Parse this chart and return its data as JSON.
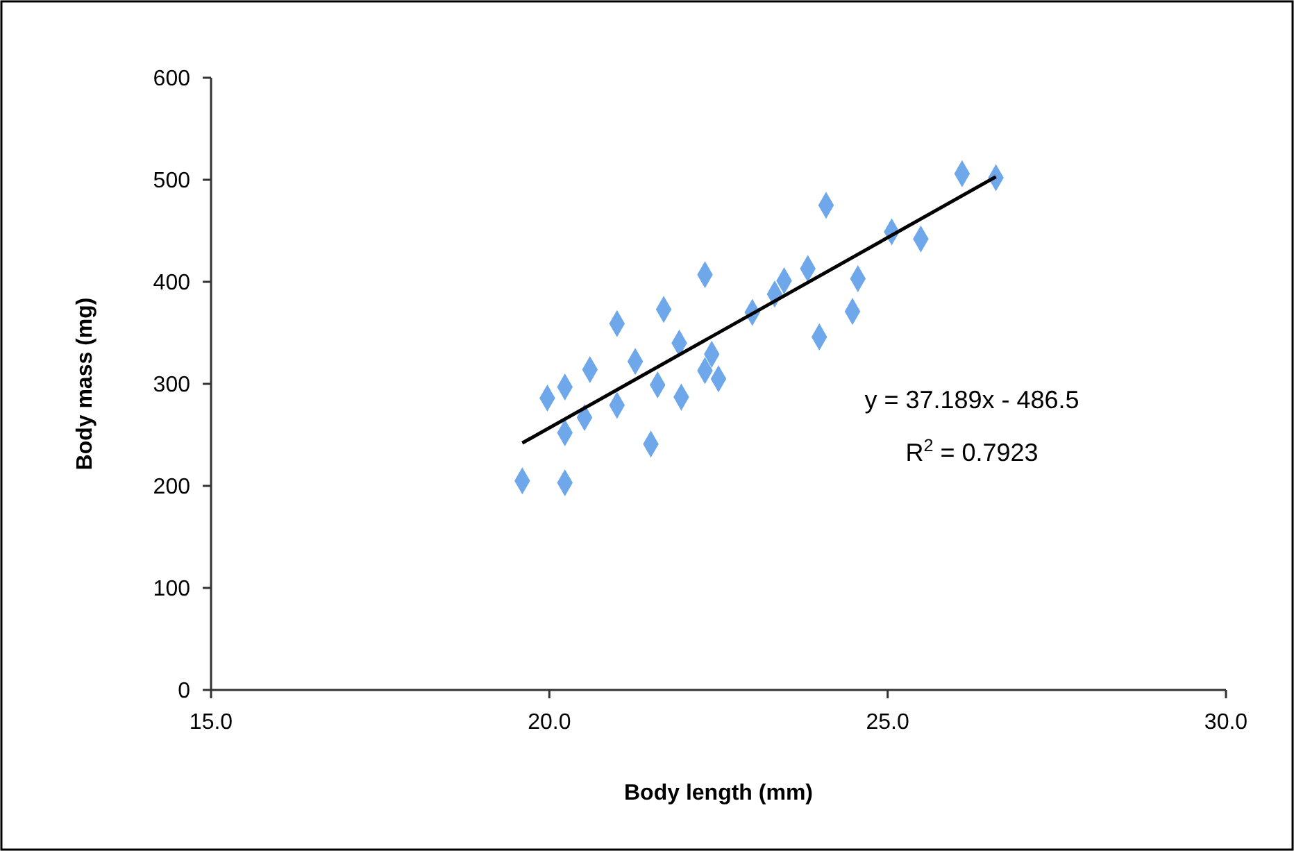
{
  "chart_data": {
    "type": "scatter",
    "xlabel": "Body length (mm)",
    "ylabel": "Body mass (mg)",
    "xlim": [
      15,
      30
    ],
    "xticks": [
      {
        "value": 15,
        "label": "15.0"
      },
      {
        "value": 20,
        "label": "20.0"
      },
      {
        "value": 25,
        "label": "25.0"
      },
      {
        "value": 30,
        "label": "30.0"
      }
    ],
    "ylim": [
      0,
      600
    ],
    "yticks": [
      0,
      100,
      200,
      300,
      400,
      500,
      600
    ],
    "grid": false,
    "marker": "diamond",
    "series": [
      {
        "color": "#6fa8ea",
        "x": [
          19.6,
          20.23,
          20.23,
          19.97,
          20.23,
          20.52,
          20.6,
          21.0,
          21.0,
          21.27,
          21.5,
          21.6,
          21.69,
          21.92,
          21.95,
          22.3,
          22.4,
          22.3,
          22.5,
          23.0,
          23.33,
          23.47,
          23.82,
          24.09,
          23.99,
          24.48,
          24.56,
          25.06,
          25.49,
          26.1,
          26.6
        ],
        "values": [
          205,
          203,
          252,
          286,
          297,
          267,
          314,
          359,
          279,
          322,
          241,
          299,
          373,
          340,
          287,
          407,
          329,
          313,
          305,
          370,
          388,
          401,
          413,
          475,
          346,
          371,
          403,
          449,
          442,
          506,
          502
        ]
      },
      {
        "type": "line",
        "color": "#000000",
        "marker": "none",
        "x": [
          19.6,
          26.6
        ],
        "values": [
          242,
          503
        ]
      }
    ],
    "annotations": [
      "y = 37.189x - 486.5",
      "R$^{2}$ = 0.7923"
    ]
  }
}
